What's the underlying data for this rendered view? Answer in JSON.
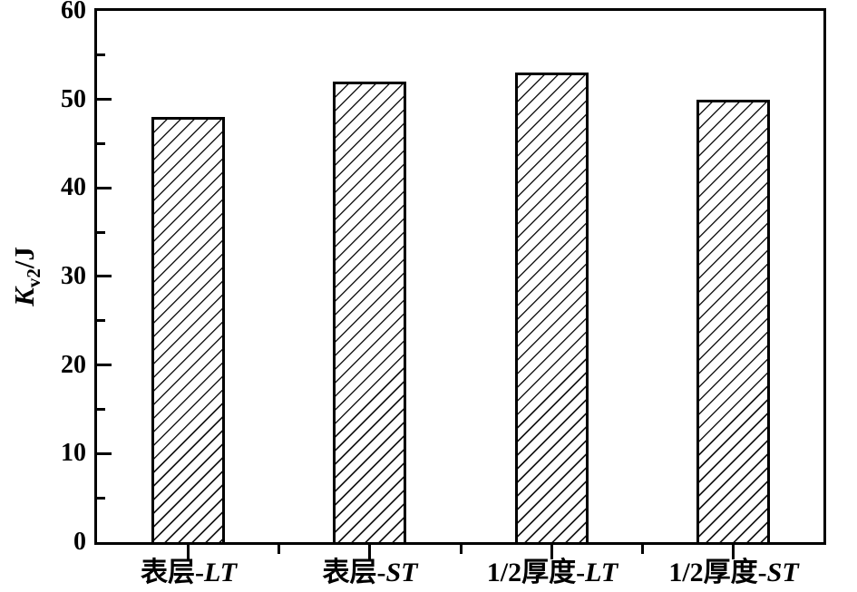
{
  "chart_data": {
    "type": "bar",
    "title": "",
    "categories": [
      "表层-LT",
      "表层-ST",
      "1/2厚度-LT",
      "1/2厚度-ST"
    ],
    "values": [
      48,
      52,
      53,
      50
    ],
    "xlabel": "",
    "ylabel": "Kv2/J",
    "ylim": [
      0,
      60
    ],
    "yticks": [
      0,
      10,
      20,
      30,
      40,
      50,
      60
    ],
    "ytick_minor_step": 5,
    "grid": false,
    "legend": null,
    "bar_fill": "#ffffff",
    "bar_hatch": "/",
    "line_color": "#000000",
    "background_color": "#ffffff",
    "ylabel_parts": {
      "symbol": "K",
      "subscript": "v2",
      "unit": "/J"
    },
    "category_parts": [
      {
        "text": "表层-",
        "italic": "LT"
      },
      {
        "text": "表层-",
        "italic": "ST"
      },
      {
        "text": "1/2厚度-",
        "italic": "LT"
      },
      {
        "text": "1/2厚度-",
        "italic": "ST"
      }
    ]
  }
}
